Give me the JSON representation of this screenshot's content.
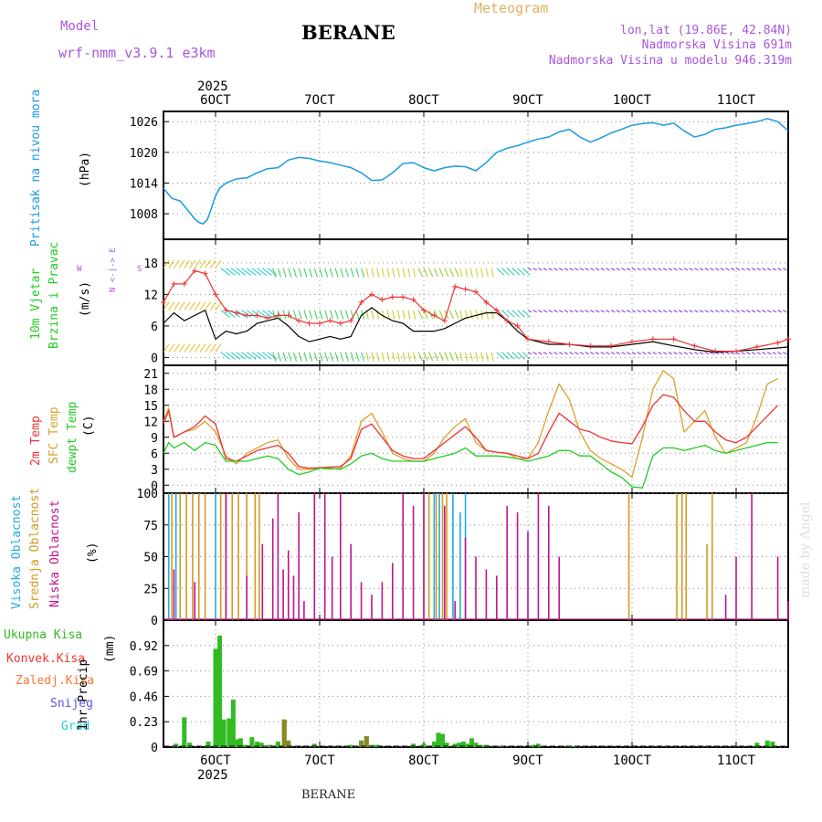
{
  "header": {
    "model_label": "Model",
    "model_name": "wrf-nmm_v3.9.1 e3km",
    "title": "BERANE",
    "product": "Meteogram",
    "coords": "lon,lat (19.86E, 42.84N)",
    "elevation": "Nadmorska Visina 691m",
    "model_elevation": "Nadmorska Visina u modelu 946.319m",
    "footer_station": "BERANE",
    "watermark": "made by Angel"
  },
  "colors": {
    "pressure": "#1a9be0",
    "wind_speed": "#000000",
    "gust": "#ee3333",
    "temp2m": "#ee3333",
    "sfc": "#dca02c",
    "dewpt": "#22cc22",
    "cloud_high": "#22aadd",
    "cloud_mid": "#d49a22",
    "cloud_low": "#c0148c",
    "precip_total": "#33bb22",
    "precip_conv": "#ee3333",
    "precip_frz": "#ff7733",
    "precip_snow": "#5555ee",
    "precip_hail": "#22cccc",
    "purple": "#aa55dd",
    "grid": "#888888"
  },
  "chart_data": [
    {
      "type": "line",
      "name": "pressure",
      "ylabel_left": "Pritisak na nivou mora",
      "ylabel_unit": "(hPa)",
      "ylim": [
        1003,
        1028
      ],
      "yticks": [
        1008,
        1014,
        1020,
        1026
      ],
      "x": [
        5.5,
        5.58,
        5.66,
        5.72,
        5.76,
        5.8,
        5.84,
        5.88,
        5.92,
        5.96,
        6.0,
        6.04,
        6.1,
        6.2,
        6.3,
        6.4,
        6.5,
        6.6,
        6.7,
        6.8,
        6.9,
        7.0,
        7.1,
        7.2,
        7.3,
        7.4,
        7.5,
        7.6,
        7.7,
        7.8,
        7.9,
        8.0,
        8.1,
        8.2,
        8.3,
        8.4,
        8.5,
        8.6,
        8.7,
        8.8,
        8.9,
        9.0,
        9.1,
        9.2,
        9.3,
        9.4,
        9.5,
        9.6,
        9.7,
        9.8,
        9.9,
        10.0,
        10.1,
        10.2,
        10.3,
        10.4,
        10.5,
        10.6,
        10.7,
        10.8,
        10.9,
        11.0,
        11.1,
        11.2,
        11.3,
        11.4,
        11.5
      ],
      "values": [
        1013,
        1011,
        1010.5,
        1009,
        1008,
        1007,
        1006.3,
        1006,
        1006.8,
        1009,
        1011.5,
        1013,
        1014,
        1014.8,
        1015,
        1016,
        1016.8,
        1017,
        1018.5,
        1019,
        1018.8,
        1018.3,
        1018,
        1017.5,
        1017,
        1016,
        1014.5,
        1014.6,
        1016,
        1017.8,
        1018,
        1017,
        1016.4,
        1017,
        1017.3,
        1017.2,
        1016.4,
        1018,
        1020,
        1020.8,
        1021.3,
        1022,
        1022.6,
        1023,
        1024,
        1024.5,
        1023,
        1022,
        1022.8,
        1023.8,
        1024.5,
        1025.3,
        1025.6,
        1025.8,
        1025.3,
        1025.7,
        1024.2,
        1023,
        1023.5,
        1024.5,
        1024.8,
        1025.3,
        1025.6,
        1026,
        1026.6,
        1026,
        1024.2
      ]
    },
    {
      "type": "line",
      "name": "wind",
      "ylabel_left": "10m Vjetar",
      "ylabel_left2": "Brzina i Pravac",
      "ylabel_unit": "(m/s)",
      "compass": "N <-|-> E",
      "compass_w": "W",
      "compass_s": "S",
      "ylim": [
        -1.5,
        22.5
      ],
      "yticks": [
        0,
        6,
        12,
        18
      ],
      "x": [
        5.5,
        5.6,
        5.7,
        5.8,
        5.9,
        6.0,
        6.1,
        6.2,
        6.3,
        6.4,
        6.5,
        6.6,
        6.7,
        6.8,
        6.9,
        7.0,
        7.1,
        7.2,
        7.3,
        7.4,
        7.5,
        7.6,
        7.7,
        7.8,
        7.9,
        8.0,
        8.1,
        8.2,
        8.3,
        8.4,
        8.5,
        8.6,
        8.7,
        8.8,
        8.9,
        9.0,
        9.2,
        9.4,
        9.6,
        9.8,
        10.0,
        10.2,
        10.4,
        10.6,
        10.8,
        11.0,
        11.2,
        11.4,
        11.5
      ],
      "speed": [
        6.5,
        8.5,
        7,
        8,
        9,
        3.5,
        5,
        4.5,
        5,
        6.5,
        7,
        7.5,
        6,
        4,
        3,
        3.5,
        4,
        3.5,
        4,
        8,
        9.5,
        8,
        7,
        6.5,
        5,
        5,
        5,
        5.5,
        6.5,
        7.5,
        8,
        8.5,
        8.5,
        7,
        5,
        3.5,
        2.5,
        2.5,
        2,
        2,
        2.5,
        3,
        2.2,
        1.5,
        1,
        1.2,
        1.5,
        1.8,
        2
      ],
      "gust": [
        10.5,
        14,
        14,
        16.5,
        16,
        12,
        9,
        8.5,
        8,
        8,
        7.5,
        8,
        8,
        7,
        6.5,
        6.5,
        7,
        6.5,
        7,
        10.5,
        12,
        11,
        11.5,
        11.5,
        11,
        9,
        8,
        7,
        13.5,
        13,
        12.5,
        10.5,
        9,
        7,
        6,
        3.5,
        3,
        2.5,
        2.2,
        2.2,
        3,
        3.5,
        3.5,
        2.2,
        1.2,
        1.2,
        2,
        2.8,
        3.5
      ]
    },
    {
      "type": "line",
      "name": "temperature",
      "ylabel_left": "2m Temp",
      "ylabel_left2": "SFC Temp",
      "ylabel_left3": "dewpt Temp",
      "ylabel_unit": "(C)",
      "ylim": [
        -1.5,
        22.5
      ],
      "yticks": [
        0,
        3,
        6,
        9,
        12,
        15,
        18,
        21
      ],
      "x": [
        5.5,
        5.55,
        5.6,
        5.7,
        5.8,
        5.9,
        6.0,
        6.1,
        6.2,
        6.3,
        6.4,
        6.5,
        6.6,
        6.7,
        6.8,
        6.9,
        7.0,
        7.1,
        7.2,
        7.3,
        7.4,
        7.5,
        7.6,
        7.7,
        7.8,
        7.9,
        8.0,
        8.1,
        8.2,
        8.3,
        8.4,
        8.5,
        8.6,
        8.7,
        8.8,
        8.9,
        9.0,
        9.1,
        9.2,
        9.3,
        9.4,
        9.5,
        9.6,
        9.7,
        9.8,
        9.9,
        10.0,
        10.1,
        10.2,
        10.3,
        10.4,
        10.5,
        10.6,
        10.7,
        10.8,
        10.9,
        11.0,
        11.1,
        11.2,
        11.3,
        11.4,
        11.5
      ],
      "t2m": [
        11.5,
        14,
        9,
        10,
        11,
        13,
        11.5,
        5,
        4.5,
        5.5,
        6.5,
        7,
        7.5,
        6,
        3.5,
        3.2,
        3.3,
        3.4,
        3.5,
        5,
        10.5,
        11.5,
        9,
        6.5,
        5.5,
        5,
        5,
        6.5,
        8,
        9.5,
        11,
        9,
        6.5,
        6.2,
        6,
        5.5,
        5,
        6,
        10,
        13.5,
        12,
        10.5,
        10,
        9,
        8.3,
        8,
        7.8,
        11,
        15,
        17,
        16.5,
        14,
        12,
        12,
        10,
        8.5,
        8,
        9,
        11,
        13,
        15
      ],
      "sfc": [
        12,
        14.5,
        9,
        10,
        10.5,
        12,
        10,
        5.5,
        4,
        6,
        7,
        8,
        8.5,
        5,
        3,
        3,
        3.2,
        3,
        3.2,
        5.5,
        12,
        13.5,
        10,
        6,
        5,
        4.5,
        4.5,
        6,
        9,
        11,
        12.5,
        8,
        6.5,
        6.2,
        6,
        5,
        5,
        8,
        14,
        19,
        16,
        10,
        6.5,
        5,
        4,
        3,
        1.5,
        9,
        18,
        21.5,
        20,
        10,
        12,
        14,
        9,
        6,
        7,
        8,
        13,
        19,
        20
      ],
      "dewpt": [
        6,
        8,
        7,
        8,
        6.5,
        8,
        7.5,
        4.5,
        4.5,
        4.5,
        5,
        5.5,
        5,
        3,
        2,
        2.5,
        3.2,
        3.2,
        3,
        4,
        5.5,
        6,
        5,
        4.5,
        4.5,
        4.5,
        4.5,
        5,
        5.5,
        6,
        7,
        5.5,
        5.5,
        5.5,
        5.3,
        5,
        4.5,
        5,
        5.5,
        6.5,
        6.5,
        5.5,
        5.5,
        4,
        2.5,
        1.5,
        -0.3,
        -0.5,
        5.5,
        7,
        7,
        6.5,
        7,
        7.5,
        6.5,
        6,
        6.5,
        7,
        7.5,
        8,
        8
      ]
    },
    {
      "type": "bar",
      "name": "clouds",
      "ylabel_left": "Visoka Oblacnost",
      "ylabel_left2": "Srednja Oblacnost",
      "ylabel_left3": "Niska Oblacnost",
      "ylabel_unit": "(%)",
      "ylim": [
        0,
        100
      ],
      "yticks": [
        0,
        25,
        50,
        75,
        100
      ],
      "series": [
        {
          "name": "high",
          "x": [
            5.55,
            5.62,
            6.0,
            8.1,
            8.15,
            8.28,
            8.35,
            8.4
          ],
          "values": [
            100,
            100,
            100,
            100,
            100,
            100,
            85,
            100
          ]
        },
        {
          "name": "mid",
          "x": [
            5.58,
            5.66,
            5.72,
            5.78,
            5.84,
            5.9,
            6.05,
            6.1,
            6.16,
            6.22,
            6.3,
            6.38,
            6.42,
            8.0,
            8.05,
            8.12,
            8.18,
            8.22,
            9.97,
            10.43,
            10.48,
            10.52,
            10.72,
            10.77
          ],
          "values": [
            100,
            100,
            100,
            100,
            100,
            100,
            100,
            100,
            100,
            100,
            100,
            100,
            100,
            100,
            100,
            100,
            100,
            100,
            100,
            100,
            100,
            100,
            60,
            100
          ]
        },
        {
          "name": "low",
          "x": [
            5.6,
            5.8,
            6.1,
            6.3,
            6.45,
            6.55,
            6.6,
            6.65,
            6.7,
            6.75,
            6.8,
            6.85,
            6.95,
            7.05,
            7.12,
            7.2,
            7.3,
            7.4,
            7.5,
            7.6,
            7.7,
            7.8,
            7.9,
            8.0,
            8.2,
            8.3,
            8.4,
            8.5,
            8.6,
            8.7,
            8.8,
            8.9,
            9.0,
            9.1,
            9.2,
            9.3,
            10.9,
            11.0,
            11.15,
            11.4,
            11.5
          ],
          "values": [
            40,
            30,
            100,
            35,
            60,
            80,
            100,
            40,
            55,
            35,
            85,
            15,
            100,
            100,
            50,
            100,
            60,
            30,
            20,
            30,
            45,
            100,
            90,
            100,
            90,
            15,
            65,
            50,
            40,
            35,
            90,
            85,
            70,
            100,
            90,
            50,
            20,
            50,
            100,
            50,
            15
          ]
        }
      ]
    },
    {
      "type": "bar",
      "name": "precip",
      "ylabel_left": "1hr Precip",
      "ylabel_unit": "(mm)",
      "legend": [
        "Ukupna Kisa",
        "Konvek.Kisa",
        "Zaledj.Kisa",
        "Snijeg",
        "Grad"
      ],
      "ylim": [
        0,
        1.15
      ],
      "yticks": [
        0,
        0.23,
        0.46,
        0.69,
        0.92
      ],
      "ytick_labels": [
        "0",
        "0.23",
        "0.46",
        "0.69",
        "0.92"
      ],
      "x": [
        5.62,
        5.7,
        5.75,
        5.93,
        6.0,
        6.04,
        6.08,
        6.13,
        6.17,
        6.2,
        6.24,
        6.28,
        6.35,
        6.4,
        6.44,
        6.48,
        6.52,
        6.6,
        6.66,
        6.7,
        6.95,
        7.3,
        7.4,
        7.45,
        7.5,
        7.55,
        7.9,
        8.0,
        8.1,
        8.14,
        8.18,
        8.22,
        8.3,
        8.34,
        8.38,
        8.42,
        8.46,
        8.5,
        8.55,
        8.6,
        8.75,
        9.05,
        9.1,
        9.4,
        9.45,
        11.2,
        11.3,
        11.35
      ],
      "values": [
        0.03,
        0.27,
        0.04,
        0.05,
        0.89,
        1.01,
        0.25,
        0.26,
        0.43,
        0.07,
        0.08,
        0.02,
        0.09,
        0.05,
        0.04,
        0.01,
        0.02,
        0.05,
        0.25,
        0.04,
        0.03,
        0.02,
        0.06,
        0.1,
        0.02,
        0.02,
        0.03,
        0.03,
        0.05,
        0.13,
        0.12,
        0.04,
        0.03,
        0.04,
        0.05,
        0.03,
        0.08,
        0.04,
        0.02,
        0.02,
        0.01,
        0.02,
        0.03,
        0.01,
        0.01,
        0.04,
        0.06,
        0.05
      ],
      "conv": [
        0,
        0,
        0,
        0,
        0,
        0,
        0,
        0,
        0,
        0,
        0,
        0,
        0,
        0,
        0,
        0,
        0,
        0,
        0.25,
        0.06,
        0,
        0,
        0.05,
        0.1,
        0,
        0,
        0,
        0,
        0,
        0,
        0,
        0,
        0,
        0,
        0,
        0,
        0,
        0,
        0,
        0,
        0,
        0,
        0,
        0,
        0,
        0,
        0,
        0
      ]
    }
  ],
  "xaxis": {
    "xlim": [
      5.5,
      11.5
    ],
    "ticks": [
      6,
      7,
      8,
      9,
      10,
      11
    ],
    "tick_labels": [
      "6OCT",
      "7OCT",
      "8OCT",
      "9OCT",
      "10OCT",
      "11OCT"
    ],
    "year_label": "2025"
  }
}
